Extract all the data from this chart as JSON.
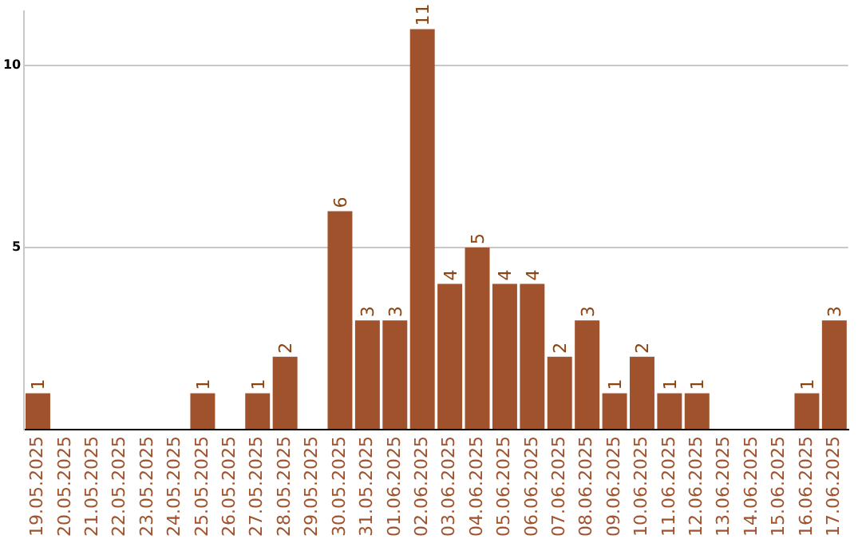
{
  "chart_data": {
    "type": "bar",
    "categories": [
      "19.05.2025",
      "20.05.2025",
      "21.05.2025",
      "22.05.2025",
      "23.05.2025",
      "24.05.2025",
      "25.05.2025",
      "26.05.2025",
      "27.05.2025",
      "28.05.2025",
      "29.05.2025",
      "30.05.2025",
      "31.05.2025",
      "01.06.2025",
      "02.06.2025",
      "03.06.2025",
      "04.06.2025",
      "05.06.2025",
      "06.06.2025",
      "07.06.2025",
      "08.06.2025",
      "09.06.2025",
      "10.06.2025",
      "11.06.2025",
      "12.06.2025",
      "13.06.2025",
      "14.06.2025",
      "15.06.2025",
      "16.06.2025",
      "17.06.2025"
    ],
    "values": [
      1,
      0,
      0,
      0,
      0,
      0,
      1,
      0,
      1,
      2,
      0,
      6,
      3,
      3,
      11,
      4,
      5,
      4,
      4,
      2,
      3,
      1,
      2,
      1,
      1,
      0,
      0,
      0,
      1,
      3
    ],
    "value_labels": [
      "1",
      null,
      null,
      null,
      null,
      null,
      "1",
      null,
      "1",
      "2",
      null,
      "6",
      "3",
      "3",
      "11",
      "4",
      "5",
      "4",
      "4",
      "2",
      "3",
      "1",
      "2",
      "1",
      "1",
      null,
      null,
      null,
      "1",
      "3"
    ],
    "color": "#a0522d",
    "ylim": [
      0,
      11.5
    ],
    "yticks": [
      {
        "value": 0,
        "label": null
      },
      5,
      10
    ],
    "grid": "y",
    "legend": false
  }
}
